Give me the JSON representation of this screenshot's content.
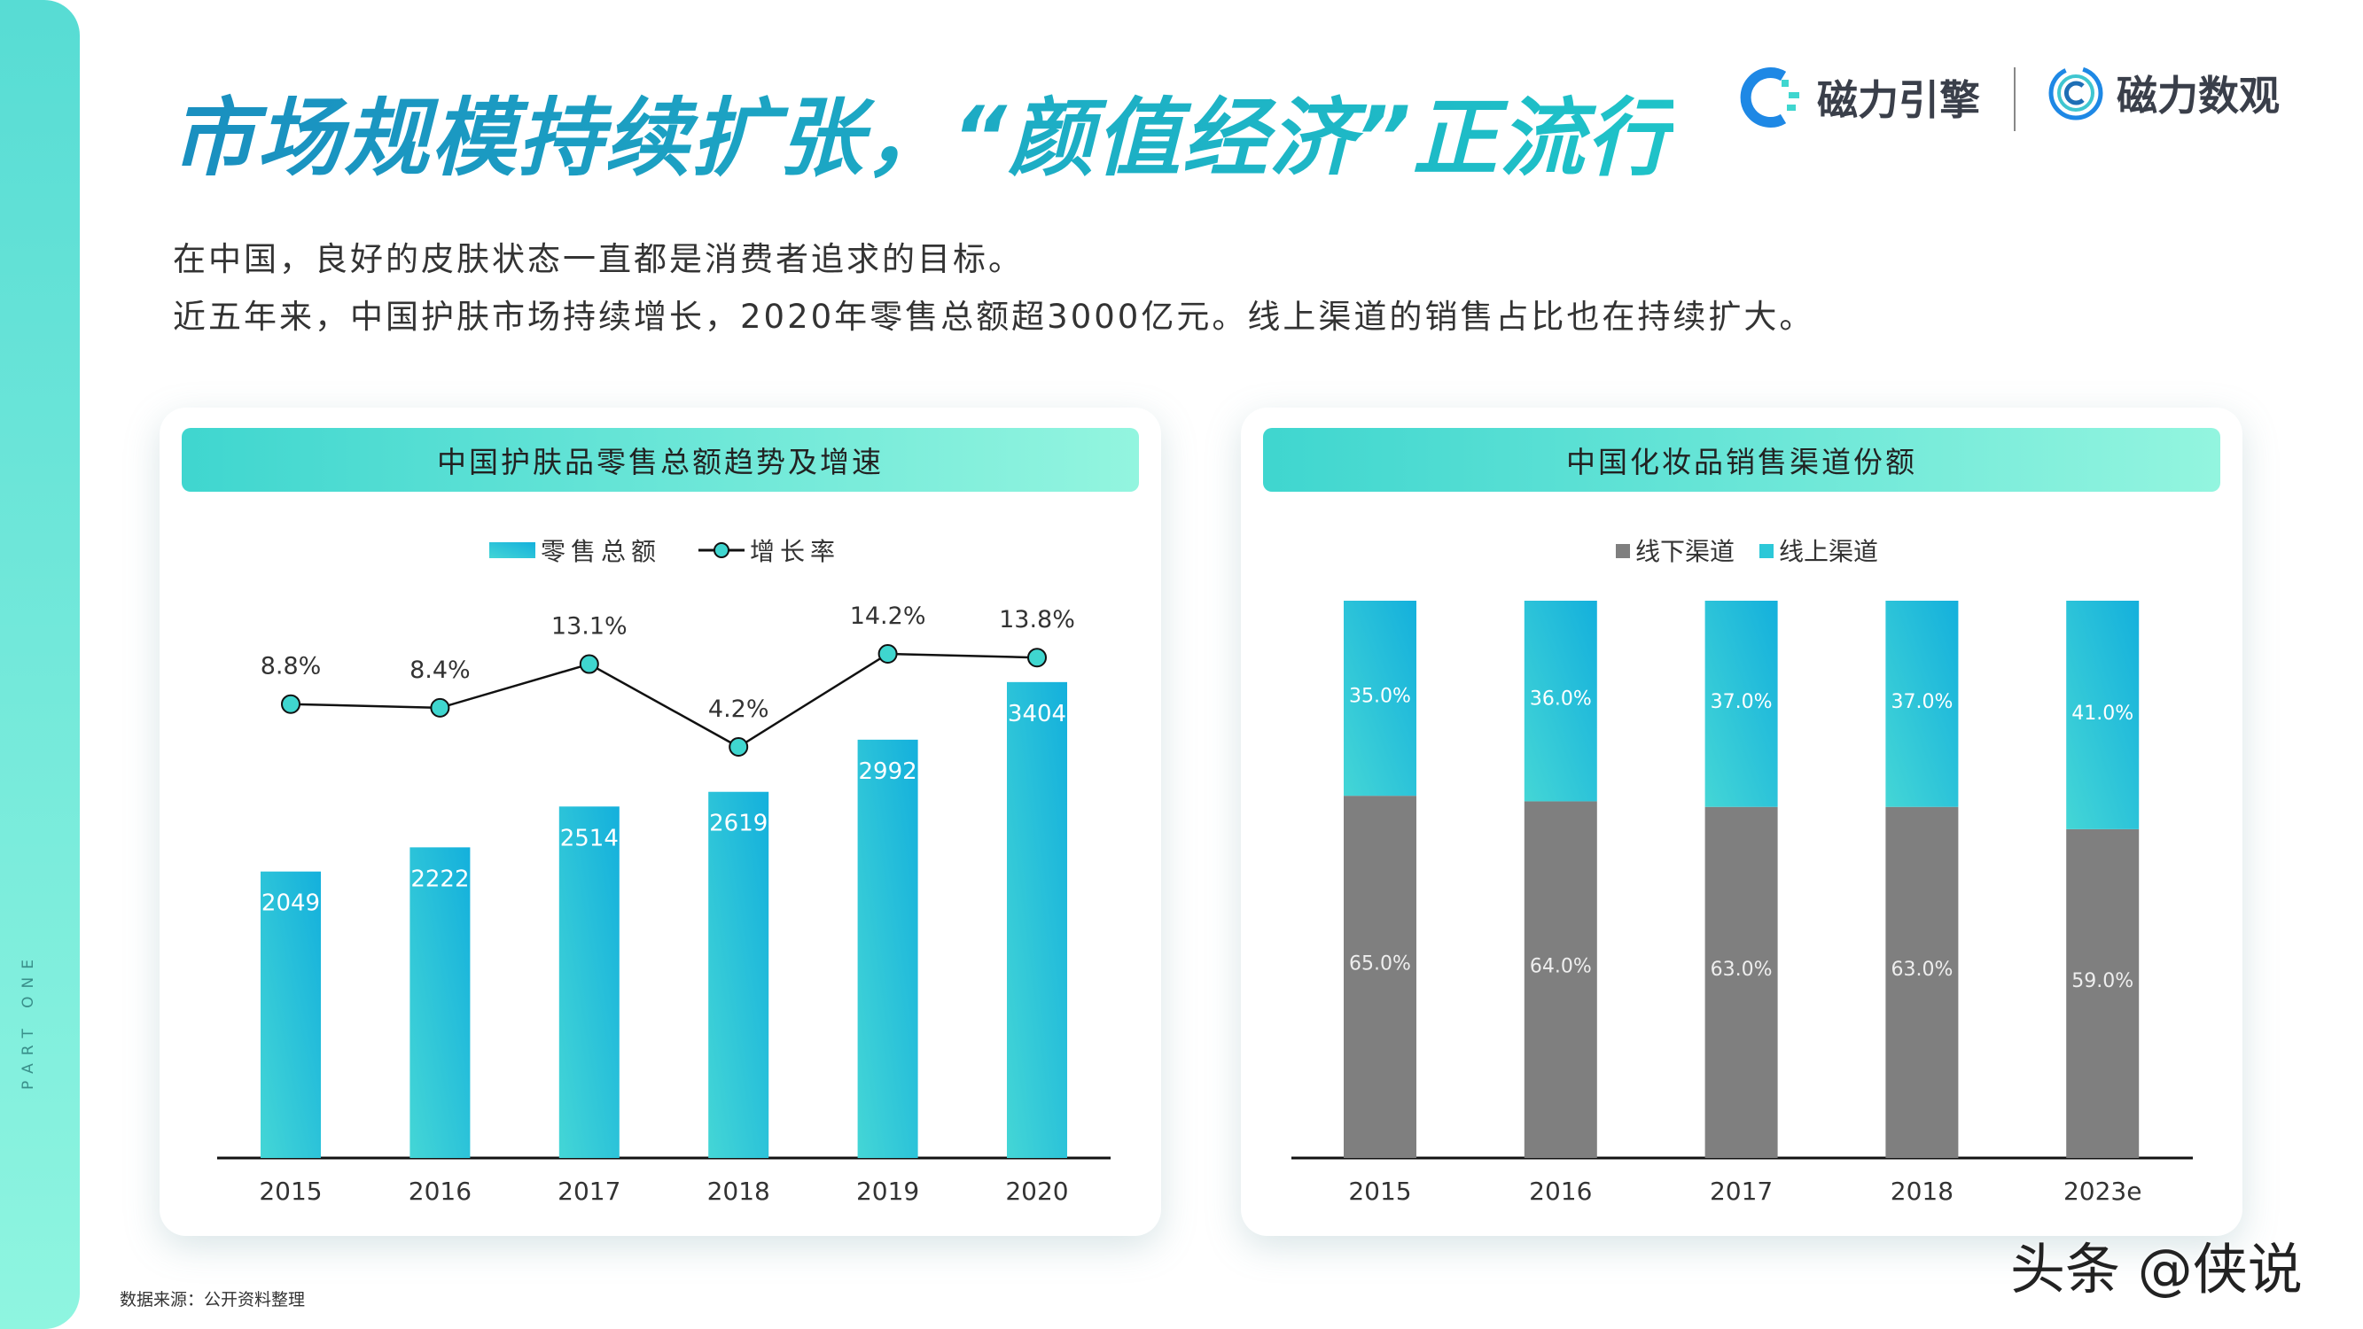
{
  "side_label": "PART ONE",
  "title": "市场规模持续扩张，“颜值经济”正流行",
  "logos": [
    {
      "name": "磁力引擎"
    },
    {
      "name": "磁力数观"
    }
  ],
  "subtitle_lines": [
    "在中国，良好的皮肤状态一直都是消费者追求的目标。",
    "近五年来，中国护肤市场持续增长，2020年零售总额超3000亿元。线上渠道的销售占比也在持续扩大。"
  ],
  "source": "数据来源：公开资料整理",
  "watermark": "头条 @侠说",
  "colors": {
    "bar": "#22c0d8",
    "offline": "#7f7f7f",
    "online": "#2cc8d8",
    "line": "#111111",
    "marker": "#3fd6cf"
  },
  "chart_data": [
    {
      "type": "bar+line",
      "title": "中国护肤品零售总额趋势及增速",
      "categories": [
        "2015",
        "2016",
        "2017",
        "2018",
        "2019",
        "2020"
      ],
      "series": [
        {
          "name": "零售总额",
          "type": "bar",
          "values": [
            2049,
            2222,
            2514,
            2619,
            2992,
            3404
          ],
          "labels": [
            "2049",
            "2222",
            "2514",
            "2619",
            "2992",
            "3404"
          ]
        },
        {
          "name": "增长率",
          "type": "line",
          "values": [
            8.8,
            8.4,
            13.1,
            4.2,
            14.2,
            13.8
          ],
          "labels": [
            "8.8%",
            "8.4%",
            "13.1%",
            "4.2%",
            "14.2%",
            "13.8%"
          ]
        }
      ],
      "legend": "top-center",
      "grid": false
    },
    {
      "type": "stacked-bar",
      "title": "中国化妆品销售渠道份额",
      "categories": [
        "2015",
        "2016",
        "2017",
        "2018",
        "2023e"
      ],
      "series": [
        {
          "name": "线下渠道",
          "values": [
            65,
            64,
            63,
            63,
            59
          ],
          "labels": [
            "65.0%",
            "64.0%",
            "63.0%",
            "63.0%",
            "59.0%"
          ]
        },
        {
          "name": "线上渠道",
          "values": [
            35,
            36,
            37,
            37,
            41
          ],
          "labels": [
            "35.0%",
            "36.0%",
            "37.0%",
            "37.0%",
            "41.0%"
          ]
        }
      ],
      "ylim": [
        0,
        100
      ],
      "legend": "top-center",
      "grid": false
    }
  ]
}
